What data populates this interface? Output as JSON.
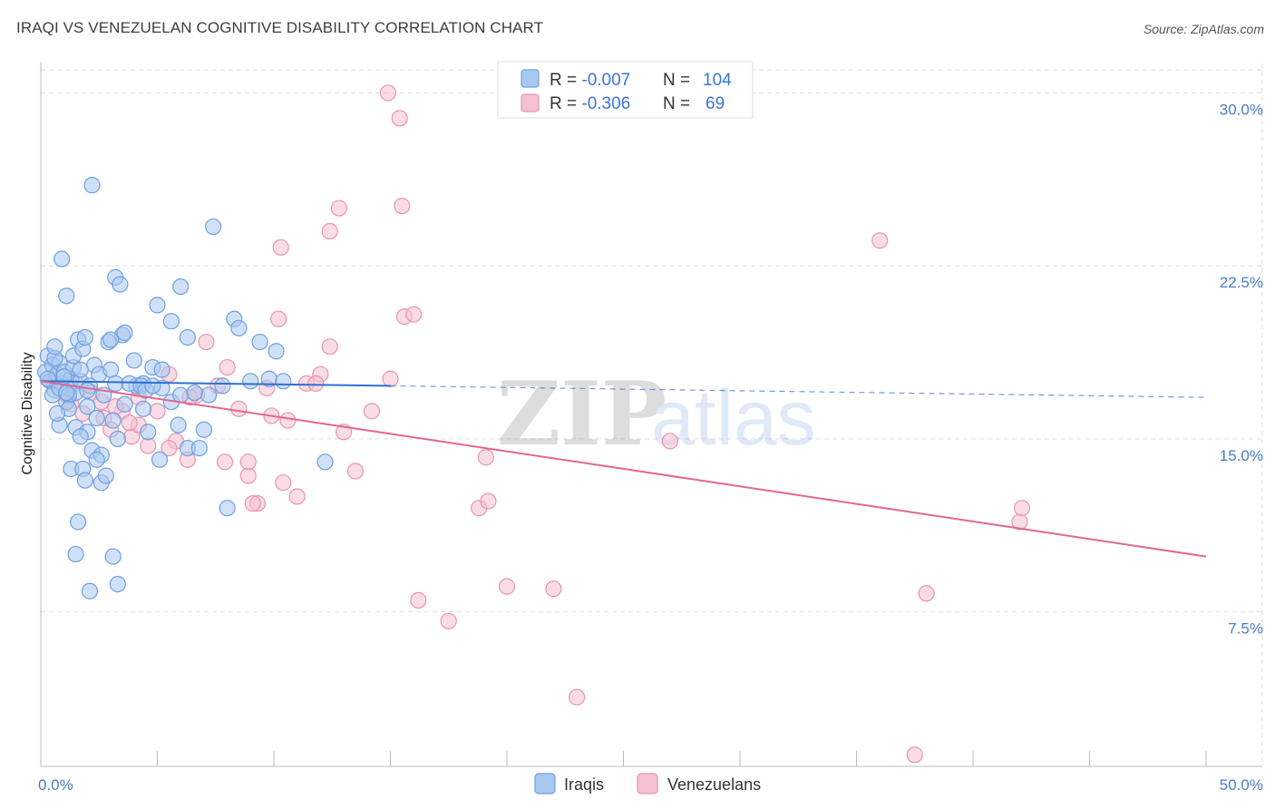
{
  "title": "IRAQI VS VENEZUELAN COGNITIVE DISABILITY CORRELATION CHART",
  "source": "Source: ZipAtlas.com",
  "watermark": {
    "zip": "ZIP",
    "atlas": "atlas"
  },
  "colors": {
    "iraqis_fill": "#a9c8f0",
    "iraqis_stroke": "#6f9fe0",
    "iraqis_line": "#2f6fd0",
    "venezuelans_fill": "#f6c0d0",
    "venezuelans_stroke": "#e895b0",
    "venezuelans_line": "#e2668f",
    "tick_text": "#4a7cc9",
    "grid": "#dddddd"
  },
  "legend_top": {
    "rows": [
      {
        "series": "Iraqis",
        "r_label": "R = ",
        "r_value": "-0.007",
        "n_label": "N = ",
        "n_value": "104"
      },
      {
        "series": "Venezuelans",
        "r_label": "R = ",
        "r_value": "-0.306",
        "n_label": "N = ",
        "n_value": "69"
      }
    ]
  },
  "legend_bottom": [
    "Iraqis",
    "Venezuelans"
  ],
  "chart_data": {
    "type": "scatter",
    "xlabel": "",
    "ylabel": "Cognitive Disability",
    "xlim": [
      0,
      50
    ],
    "ylim": [
      0.8,
      31.0
    ],
    "x_tick_labels": [
      {
        "value": 0,
        "label": "0.0%"
      },
      {
        "value": 50,
        "label": "50.0%"
      }
    ],
    "y_tick_labels": [
      {
        "value": 7.5,
        "label": "7.5%"
      },
      {
        "value": 15.0,
        "label": "15.0%"
      },
      {
        "value": 22.5,
        "label": "22.5%"
      },
      {
        "value": 30.0,
        "label": "30.0%"
      }
    ],
    "grid": true,
    "series": [
      {
        "name": "Iraqis",
        "trend": {
          "x": [
            0,
            15
          ],
          "y": [
            17.5,
            17.3
          ],
          "dashed_to_x": 50,
          "dashed_to_y": 16.8
        },
        "points": [
          [
            0.2,
            17.9
          ],
          [
            0.3,
            18.6
          ],
          [
            0.4,
            17.5
          ],
          [
            0.5,
            18.2
          ],
          [
            0.6,
            17.1
          ],
          [
            0.7,
            17.8
          ],
          [
            0.8,
            18.3
          ],
          [
            0.9,
            17.4
          ],
          [
            1.0,
            17.9
          ],
          [
            1.1,
            16.6
          ],
          [
            1.2,
            17.2
          ],
          [
            1.3,
            17.6
          ],
          [
            1.4,
            18.1
          ],
          [
            1.5,
            17.0
          ],
          [
            0.3,
            17.6
          ],
          [
            0.5,
            16.9
          ],
          [
            0.6,
            18.5
          ],
          [
            0.8,
            17.2
          ],
          [
            1.0,
            17.7
          ],
          [
            1.2,
            16.9
          ],
          [
            1.4,
            18.6
          ],
          [
            1.6,
            19.3
          ],
          [
            1.7,
            17.5
          ],
          [
            1.8,
            18.9
          ],
          [
            1.9,
            19.4
          ],
          [
            2.0,
            16.4
          ],
          [
            2.1,
            17.3
          ],
          [
            2.3,
            18.2
          ],
          [
            2.5,
            17.8
          ],
          [
            2.7,
            16.9
          ],
          [
            2.9,
            19.2
          ],
          [
            3.0,
            18.0
          ],
          [
            3.2,
            17.4
          ],
          [
            3.5,
            19.5
          ],
          [
            0.6,
            19.0
          ],
          [
            0.8,
            15.6
          ],
          [
            1.1,
            17.0
          ],
          [
            1.2,
            16.3
          ],
          [
            1.5,
            15.5
          ],
          [
            1.7,
            18.0
          ],
          [
            2.0,
            15.3
          ],
          [
            2.2,
            14.5
          ],
          [
            2.4,
            15.9
          ],
          [
            2.6,
            14.3
          ],
          [
            3.1,
            15.8
          ],
          [
            3.3,
            15.0
          ],
          [
            3.6,
            16.5
          ],
          [
            4.1,
            17.3
          ],
          [
            4.4,
            17.4
          ],
          [
            4.8,
            18.1
          ],
          [
            5.2,
            17.2
          ],
          [
            5.6,
            16.6
          ],
          [
            6.0,
            16.9
          ],
          [
            6.3,
            14.6
          ],
          [
            0.9,
            22.8
          ],
          [
            1.1,
            21.2
          ],
          [
            1.3,
            13.7
          ],
          [
            1.5,
            10.0
          ],
          [
            1.6,
            11.4
          ],
          [
            1.8,
            13.7
          ],
          [
            1.9,
            13.2
          ],
          [
            2.1,
            8.4
          ],
          [
            2.2,
            26.0
          ],
          [
            2.4,
            14.1
          ],
          [
            2.6,
            13.1
          ],
          [
            2.8,
            13.4
          ],
          [
            3.0,
            19.3
          ],
          [
            3.2,
            22.0
          ],
          [
            3.4,
            21.7
          ],
          [
            3.6,
            19.6
          ],
          [
            3.8,
            17.4
          ],
          [
            4.0,
            18.4
          ],
          [
            4.3,
            17.3
          ],
          [
            4.5,
            17.1
          ],
          [
            4.8,
            17.3
          ],
          [
            5.0,
            20.8
          ],
          [
            5.2,
            18.0
          ],
          [
            5.6,
            20.1
          ],
          [
            6.0,
            21.6
          ],
          [
            6.3,
            19.4
          ],
          [
            6.8,
            14.6
          ],
          [
            7.0,
            15.4
          ],
          [
            7.2,
            16.9
          ],
          [
            7.8,
            17.3
          ],
          [
            8.0,
            12.0
          ],
          [
            8.3,
            20.2
          ],
          [
            8.5,
            19.8
          ],
          [
            9.0,
            17.5
          ],
          [
            9.4,
            19.2
          ],
          [
            9.8,
            17.6
          ],
          [
            10.1,
            18.8
          ],
          [
            10.4,
            17.5
          ],
          [
            12.2,
            14.0
          ],
          [
            3.1,
            9.9
          ],
          [
            3.3,
            8.7
          ],
          [
            4.4,
            16.3
          ],
          [
            4.6,
            15.3
          ],
          [
            5.1,
            14.1
          ],
          [
            5.9,
            15.6
          ],
          [
            6.6,
            17.0
          ],
          [
            7.4,
            24.2
          ],
          [
            2.0,
            17.1
          ],
          [
            1.7,
            15.1
          ],
          [
            0.7,
            16.1
          ]
        ]
      },
      {
        "name": "Venezuelans",
        "trend": {
          "x": [
            0,
            50
          ],
          "y": [
            17.5,
            9.9
          ]
        },
        "points": [
          [
            0.5,
            17.5
          ],
          [
            0.8,
            17.2
          ],
          [
            1.1,
            16.9
          ],
          [
            1.5,
            17.4
          ],
          [
            1.8,
            16.1
          ],
          [
            2.2,
            17.0
          ],
          [
            2.6,
            16.6
          ],
          [
            3.0,
            15.4
          ],
          [
            3.5,
            16.2
          ],
          [
            3.9,
            15.1
          ],
          [
            4.2,
            16.8
          ],
          [
            4.6,
            14.7
          ],
          [
            5.0,
            16.2
          ],
          [
            5.5,
            17.8
          ],
          [
            5.8,
            14.9
          ],
          [
            6.3,
            14.1
          ],
          [
            6.7,
            16.9
          ],
          [
            7.1,
            19.2
          ],
          [
            7.6,
            17.3
          ],
          [
            8.0,
            18.1
          ],
          [
            8.5,
            16.3
          ],
          [
            8.9,
            13.4
          ],
          [
            9.3,
            12.2
          ],
          [
            9.7,
            17.2
          ],
          [
            10.2,
            20.2
          ],
          [
            10.6,
            15.8
          ],
          [
            11.0,
            12.5
          ],
          [
            11.4,
            17.4
          ],
          [
            12.0,
            17.8
          ],
          [
            12.4,
            19.0
          ],
          [
            13.0,
            15.3
          ],
          [
            13.5,
            13.6
          ],
          [
            14.2,
            16.2
          ],
          [
            15.0,
            17.6
          ],
          [
            15.6,
            20.3
          ],
          [
            16.0,
            20.4
          ],
          [
            14.9,
            30.0
          ],
          [
            15.4,
            28.9
          ],
          [
            12.4,
            24.0
          ],
          [
            12.8,
            25.0
          ],
          [
            10.3,
            23.3
          ],
          [
            15.5,
            25.1
          ],
          [
            8.9,
            14.0
          ],
          [
            9.1,
            12.2
          ],
          [
            7.9,
            14.0
          ],
          [
            6.4,
            16.8
          ],
          [
            5.5,
            14.6
          ],
          [
            4.2,
            15.6
          ],
          [
            3.2,
            16.4
          ],
          [
            2.7,
            15.9
          ],
          [
            16.2,
            8.0
          ],
          [
            17.5,
            7.1
          ],
          [
            18.8,
            12.0
          ],
          [
            19.2,
            12.3
          ],
          [
            19.1,
            14.2
          ],
          [
            20.0,
            8.6
          ],
          [
            22.0,
            8.5
          ],
          [
            23.0,
            3.8
          ],
          [
            27.0,
            14.9
          ],
          [
            36.0,
            23.6
          ],
          [
            37.5,
            1.3
          ],
          [
            38.0,
            8.3
          ],
          [
            42.0,
            11.4
          ],
          [
            42.1,
            12.0
          ],
          [
            10.4,
            13.1
          ],
          [
            11.8,
            17.4
          ],
          [
            9.9,
            16.0
          ],
          [
            3.8,
            15.7
          ],
          [
            1.3,
            16.5
          ]
        ]
      }
    ]
  }
}
